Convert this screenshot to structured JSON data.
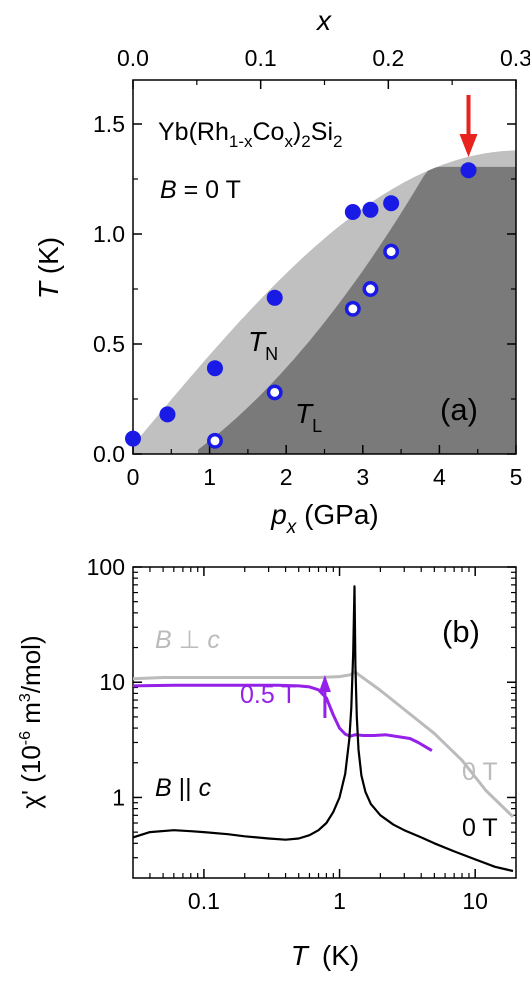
{
  "chart_data": [
    {
      "panel": "(a)",
      "type": "scatter",
      "title": "Yb(Rh1-xCox)2Si2",
      "title_parts": {
        "base": "Yb(Rh",
        "sub1": "1-x",
        "mid": "Co",
        "sub2": "x",
        "end": ")",
        "sub3": "2",
        "tail": "Si",
        "sub4": "2"
      },
      "annotation_field": "B = 0 T",
      "field_parts": {
        "var": "B",
        "rest": " = 0 T"
      },
      "xlabel": {
        "var": "p",
        "sub": "x",
        "unit": " (GPa)"
      },
      "ylabel": {
        "var": "T",
        "unit": " (K)"
      },
      "x2label": "x",
      "xlim": [
        0,
        5
      ],
      "ylim": [
        0,
        1.7
      ],
      "x2lim": [
        0,
        0.3
      ],
      "xticks": [
        0,
        1,
        2,
        3,
        4,
        5
      ],
      "yticks": [
        0.0,
        0.5,
        1.0,
        1.5
      ],
      "x2ticks": [
        0.0,
        0.1,
        0.2,
        0.3
      ],
      "xtick_labels": [
        "0",
        "1",
        "2",
        "3",
        "4",
        "5"
      ],
      "ytick_labels": [
        "0.0",
        "0.5",
        "1.0",
        "1.5"
      ],
      "x2tick_labels": [
        "0.0",
        "0.1",
        "0.2",
        "0.3"
      ],
      "series": [
        {
          "name": "T_N",
          "marker": "filled-circle",
          "x": [
            0.0,
            0.45,
            1.07,
            1.85,
            2.87,
            3.1,
            3.37,
            4.38
          ],
          "y": [
            0.07,
            0.18,
            0.39,
            0.71,
            1.1,
            1.11,
            1.14,
            1.29
          ]
        },
        {
          "name": "T_L",
          "marker": "open-circle",
          "x": [
            1.07,
            1.85,
            2.87,
            3.1,
            3.37
          ],
          "y": [
            0.06,
            0.28,
            0.66,
            0.75,
            0.92
          ]
        }
      ],
      "region_labels": [
        {
          "text": "T",
          "sub": "N"
        },
        {
          "text": "T",
          "sub": "L"
        }
      ],
      "panel_label": "(a)",
      "arrow_at_x": 4.38,
      "colors": {
        "marker": "#1a1ae6",
        "light_region": "#c0c0c0",
        "dark_region": "#7a7a7a",
        "arrow": "#e8221c"
      }
    },
    {
      "panel": "(b)",
      "type": "line",
      "xscale": "log",
      "yscale": "log",
      "xlabel": {
        "var": "T",
        "unit": "(K)"
      },
      "ylabel": "χ'  (10⁻⁶ m³/mol)",
      "xlim": [
        0.03,
        20
      ],
      "ylim": [
        0.2,
        100
      ],
      "xtick_labels": [
        "0.1",
        "1",
        "10"
      ],
      "ytick_labels": [
        "1",
        "10",
        "100"
      ],
      "xticks": [
        0.1,
        1,
        10
      ],
      "yticks": [
        1,
        10,
        100
      ],
      "series": [
        {
          "name": "B || c, 0 T",
          "color": "#000000",
          "x": [
            0.03,
            0.04,
            0.06,
            0.08,
            0.1,
            0.15,
            0.2,
            0.3,
            0.4,
            0.5,
            0.6,
            0.7,
            0.8,
            0.9,
            1.0,
            1.1,
            1.18,
            1.22,
            1.26,
            1.29,
            1.31,
            1.34,
            1.38,
            1.45,
            1.55,
            1.7,
            2.0,
            2.5,
            3.0,
            4.0,
            5.0,
            7.0,
            10.0,
            14.0,
            19.0
          ],
          "y": [
            0.45,
            0.5,
            0.52,
            0.51,
            0.5,
            0.48,
            0.46,
            0.44,
            0.43,
            0.44,
            0.47,
            0.52,
            0.6,
            0.75,
            1.0,
            1.6,
            3.2,
            6.0,
            18.0,
            68.0,
            14.0,
            5.0,
            2.6,
            1.55,
            1.12,
            0.88,
            0.7,
            0.58,
            0.52,
            0.45,
            0.4,
            0.34,
            0.29,
            0.25,
            0.23
          ]
        },
        {
          "name": "B ⊥ c, 0 T",
          "color": "#bbbbbb",
          "x": [
            0.03,
            0.05,
            0.1,
            0.2,
            0.4,
            0.7,
            1.0,
            1.2,
            1.3,
            1.4,
            2.0,
            3.0,
            5.0,
            8.0,
            12.0,
            19.0
          ],
          "y": [
            10.7,
            11.0,
            11.0,
            11.0,
            11.0,
            11.0,
            11.2,
            11.6,
            12.3,
            11.5,
            8.5,
            5.8,
            3.6,
            2.1,
            1.15,
            0.68
          ]
        },
        {
          "name": "B ⊥ c, 0.5 T",
          "color": "#9520e8",
          "x": [
            0.03,
            0.06,
            0.1,
            0.2,
            0.35,
            0.5,
            0.6,
            0.7,
            0.8,
            0.9,
            1.0,
            1.1,
            1.2,
            1.3,
            1.5,
            1.8,
            2.2,
            2.8,
            3.3,
            3.8,
            4.3,
            4.8
          ],
          "y": [
            9.3,
            9.4,
            9.4,
            9.4,
            9.4,
            9.3,
            9.1,
            8.6,
            7.3,
            5.2,
            4.0,
            3.55,
            3.4,
            3.5,
            3.45,
            3.45,
            3.5,
            3.35,
            3.25,
            3.0,
            2.75,
            2.55
          ]
        }
      ],
      "labels": {
        "perp": {
          "var": "B",
          "sym": " ⊥ ",
          "var2": "c"
        },
        "par": {
          "var": "B",
          "sym": " || ",
          "var2": "c"
        },
        "half_tesla": "0.5 T",
        "zero_t_gray": "0 T",
        "zero_t_black": "0 T"
      },
      "panel_label": "(b)",
      "arrow_at_x": 0.78,
      "colors": {
        "perp_zero": "#bbbbbb",
        "perp_half": "#9520e8",
        "par_zero": "#000000"
      }
    }
  ]
}
